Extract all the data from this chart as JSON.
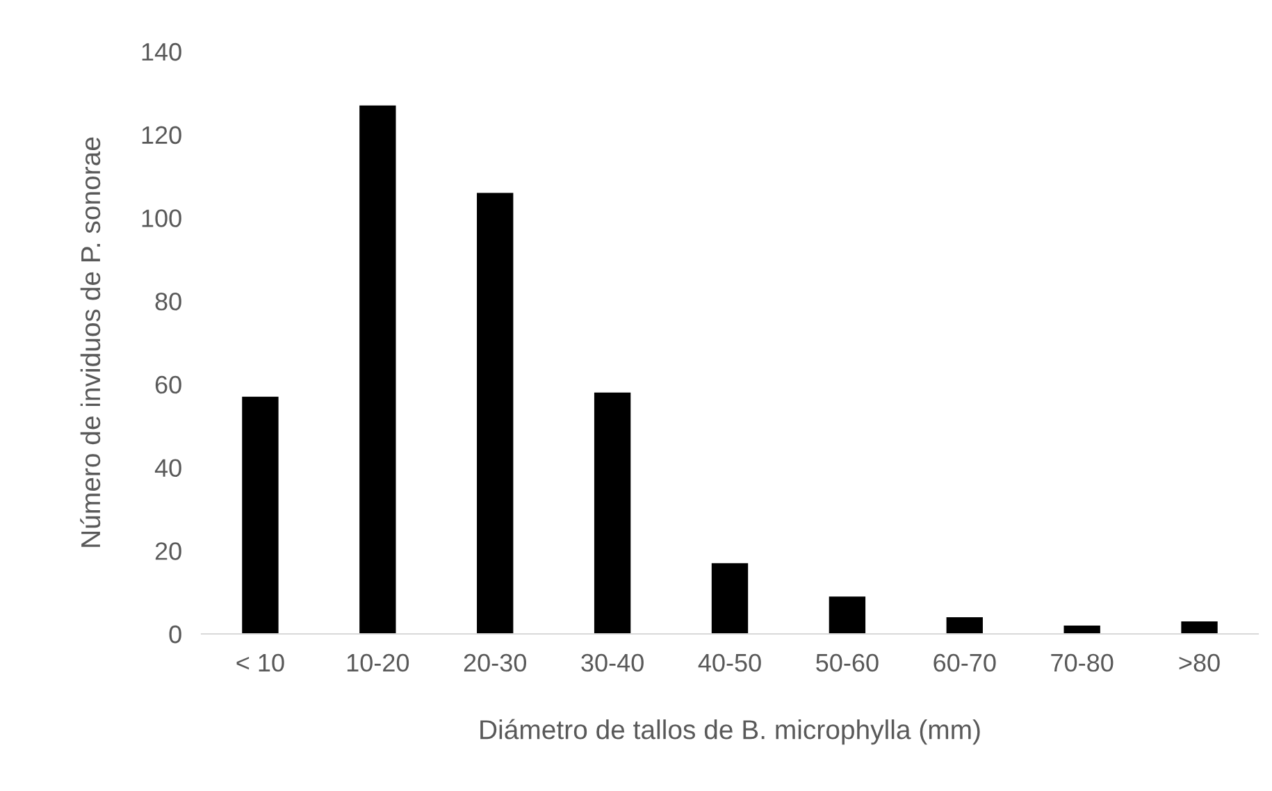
{
  "chart_data": {
    "type": "bar",
    "categories": [
      "< 10",
      "10-20",
      "20-30",
      "30-40",
      "40-50",
      "50-60",
      "60-70",
      "70-80",
      ">80"
    ],
    "values": [
      57,
      127,
      106,
      58,
      17,
      9,
      4,
      2,
      3
    ],
    "color": "#000000",
    "xlabel": "Diámetro de tallos de B. microphylla (mm)",
    "ylabel": "Número de inviduos de P. sonorae",
    "ylim": [
      0,
      140
    ],
    "yticks": [
      0,
      20,
      40,
      60,
      80,
      100,
      120,
      140
    ],
    "grid": false
  }
}
